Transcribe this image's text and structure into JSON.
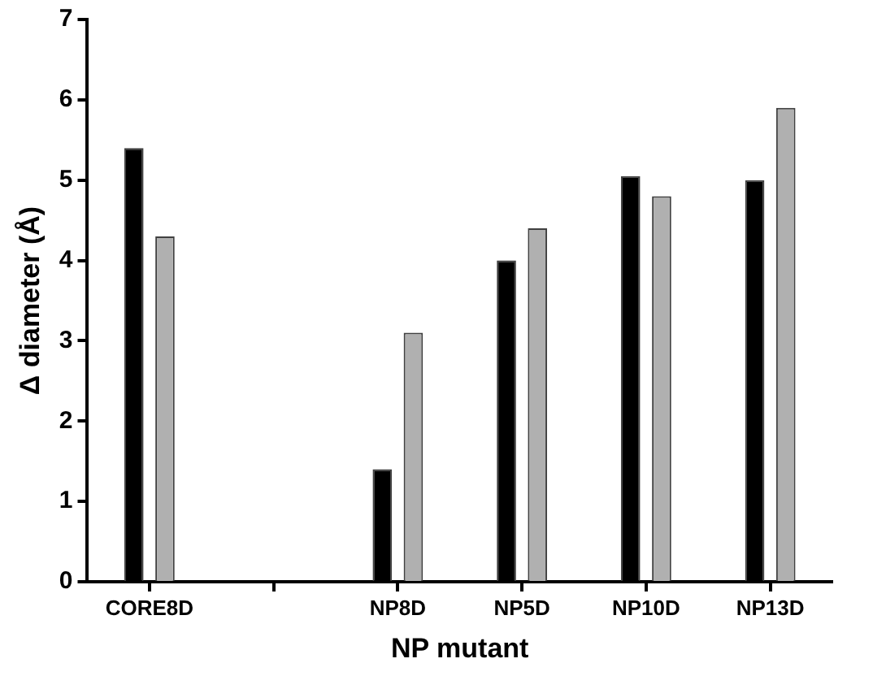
{
  "chart_data": {
    "type": "bar",
    "xlabel": "NP mutant",
    "ylabel": "Δ diameter (Å)",
    "categories": [
      "CORE8D",
      null,
      "NP8D",
      "NP5D",
      "NP10D",
      "NP13D"
    ],
    "series": [
      {
        "color": "#000000",
        "values": [
          5.4,
          null,
          1.4,
          4.0,
          5.05,
          5.0
        ]
      },
      {
        "color": "#b0b0b0",
        "values": [
          4.3,
          null,
          3.1,
          4.4,
          4.8,
          5.9
        ]
      }
    ],
    "ylim": [
      0,
      7
    ],
    "yticks": [
      0,
      1,
      2,
      3,
      4,
      5,
      6,
      7
    ],
    "grid": false,
    "legend": false
  }
}
